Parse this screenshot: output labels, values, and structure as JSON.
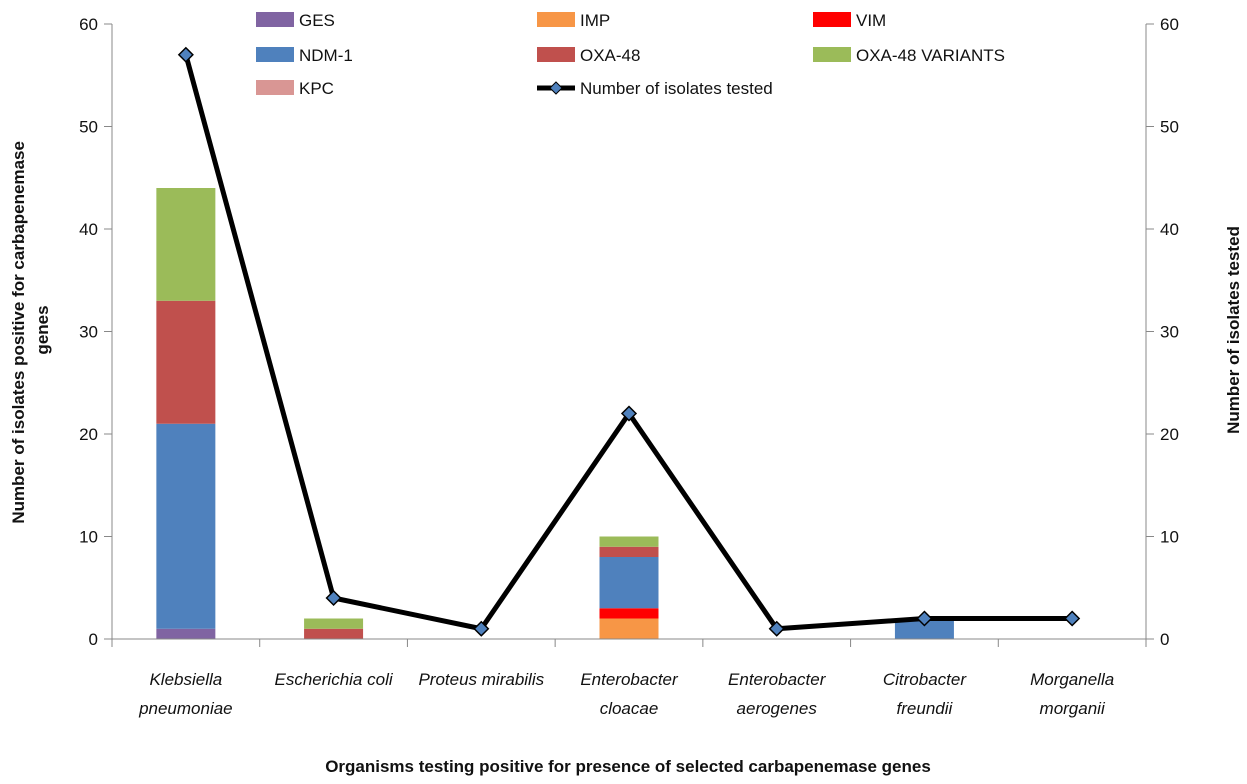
{
  "chart_data": {
    "type": "bar",
    "stacked": true,
    "categories": [
      [
        "Klebsiella",
        "pneumoniae"
      ],
      [
        "Escherichia coli"
      ],
      [
        "Proteus mirabilis"
      ],
      [
        "Enterobacter",
        "cloacae"
      ],
      [
        "Enterobacter",
        "aerogenes"
      ],
      [
        "Citrobacter",
        "freundii"
      ],
      [
        "Morganella",
        "morganii"
      ]
    ],
    "series": [
      {
        "name": "GES",
        "color": "#8064A2",
        "values": [
          1,
          0,
          0,
          0,
          0,
          0,
          0
        ]
      },
      {
        "name": "IMP",
        "color": "#F79646",
        "values": [
          0,
          0,
          0,
          2,
          0,
          0,
          0
        ]
      },
      {
        "name": "VIM",
        "color": "#FF0000",
        "values": [
          0,
          0,
          0,
          1,
          0,
          0,
          0
        ]
      },
      {
        "name": "NDM-1",
        "color": "#4F81BD",
        "values": [
          20,
          0,
          0,
          5,
          0,
          2,
          0
        ]
      },
      {
        "name": "OXA-48",
        "color": "#C0504D",
        "values": [
          12,
          1,
          0,
          1,
          0,
          0,
          0
        ]
      },
      {
        "name": "OXA-48 VARIANTS",
        "color": "#9BBB59",
        "values": [
          11,
          1,
          0,
          1,
          0,
          0,
          0
        ]
      },
      {
        "name": "KPC",
        "color": "#D99694",
        "values": [
          0,
          0,
          0,
          0,
          0,
          0,
          0
        ]
      }
    ],
    "line_series": {
      "name": "Number of isolates tested",
      "color": "#000000",
      "marker_color": "#4F81BD",
      "values": [
        57,
        4,
        1,
        22,
        1,
        2,
        2
      ]
    },
    "xlabel": "Organisms testing positive for presence of selected carbapenemase  genes",
    "ylabel_left": [
      "Number of isolates positive for carbapenemase",
      "genes"
    ],
    "ylabel_right": "Number  of isolates tested",
    "ylim": [
      0,
      60
    ],
    "yticks": [
      "0",
      "10",
      "20",
      "30",
      "40",
      "50",
      "60"
    ],
    "legend": "top",
    "grid": false
  }
}
